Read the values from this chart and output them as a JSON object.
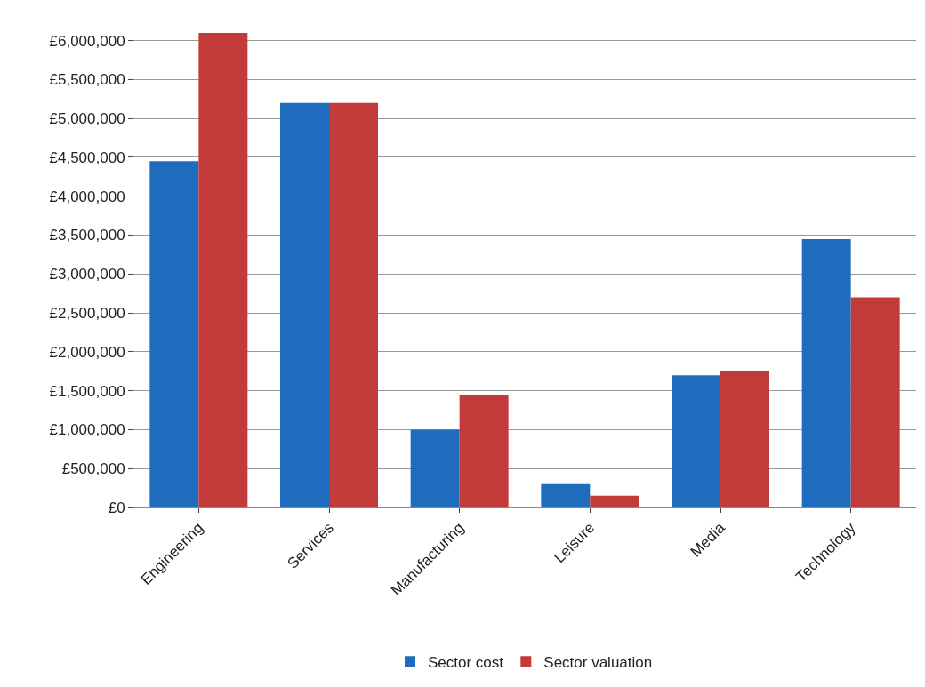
{
  "chart_data": {
    "type": "bar",
    "categories": [
      "Engineering",
      "Services",
      "Manufacturing",
      "Leisure",
      "Media",
      "Technology"
    ],
    "series": [
      {
        "name": "Sector cost",
        "color": "#1f6cbf",
        "values": [
          4450000,
          5200000,
          1000000,
          300000,
          1700000,
          3450000
        ]
      },
      {
        "name": "Sector valuation",
        "color": "#c33a3a",
        "values": [
          6100000,
          5200000,
          1450000,
          150000,
          1750000,
          2700000
        ]
      }
    ],
    "ylim": [
      0,
      6350000
    ],
    "yticks": [
      {
        "value": 0,
        "label": "£0"
      },
      {
        "value": 500000,
        "label": "£500,000"
      },
      {
        "value": 1000000,
        "label": "£1,000,000"
      },
      {
        "value": 1500000,
        "label": "£1,500,000"
      },
      {
        "value": 2000000,
        "label": "£2,000,000"
      },
      {
        "value": 2500000,
        "label": "£2,500,000"
      },
      {
        "value": 3000000,
        "label": "£3,000,000"
      },
      {
        "value": 3500000,
        "label": "£3,500,000"
      },
      {
        "value": 4000000,
        "label": "£4,000,000"
      },
      {
        "value": 4500000,
        "label": "£4,500,000"
      },
      {
        "value": 5000000,
        "label": "£5,000,000"
      },
      {
        "value": 5500000,
        "label": "£5,500,000"
      },
      {
        "value": 6000000,
        "label": "£6,000,000"
      }
    ],
    "grid": "y",
    "legend": "bottom"
  }
}
